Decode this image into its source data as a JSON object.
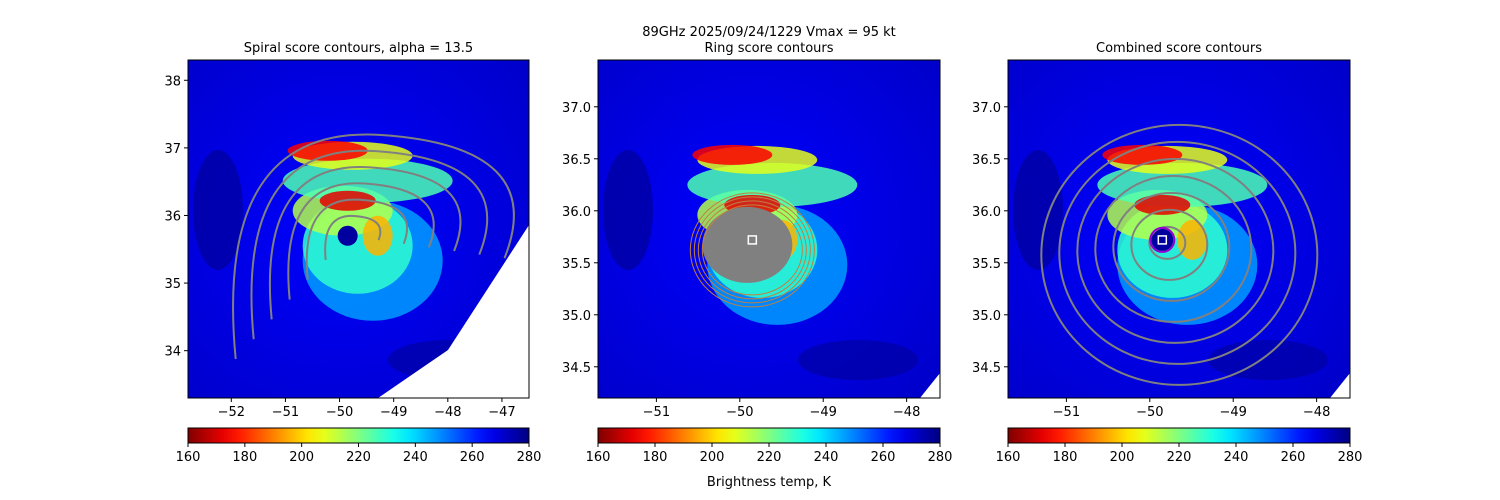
{
  "figure": {
    "suptitle": "89GHz  2025/09/24/1229    Vmax = 95 kt",
    "colorbar_label": "Brightness temp, K"
  },
  "colors": {
    "field_low": "#0000ff",
    "field_high": "#00008b",
    "contour": "#808080",
    "center_marker": "#ffffff",
    "ring_marker": "#9400d3"
  },
  "chart_data": [
    {
      "type": "heatmap",
      "title": "Spiral score contours, alpha = 13.5",
      "xlim": [
        -52.8,
        -46.5
      ],
      "ylim": [
        33.3,
        38.3
      ],
      "xticks": [
        -52,
        -51,
        -50,
        -49,
        -48,
        -47
      ],
      "yticks": [
        34,
        35,
        36,
        37,
        38
      ],
      "center": [
        -49.85,
        35.7
      ],
      "colorbar": {
        "range": [
          160,
          280
        ],
        "ticks": [
          160,
          180,
          200,
          220,
          240,
          260,
          280
        ],
        "colormap": "jet_r"
      }
    },
    {
      "type": "heatmap",
      "title": "Ring score contours",
      "xlim": [
        -51.7,
        -47.6
      ],
      "ylim": [
        34.2,
        37.45
      ],
      "xticks": [
        -51,
        -50,
        -49,
        -48
      ],
      "yticks": [
        34.5,
        35.0,
        35.5,
        36.0,
        36.5,
        37.0
      ],
      "center": [
        -49.85,
        35.72
      ],
      "colorbar": {
        "range": [
          160,
          280
        ],
        "ticks": [
          160,
          180,
          200,
          220,
          240,
          260,
          280
        ],
        "colormap": "jet_r"
      }
    },
    {
      "type": "heatmap",
      "title": "Combined score contours",
      "xlim": [
        -51.7,
        -47.6
      ],
      "ylim": [
        34.2,
        37.45
      ],
      "xticks": [
        -51,
        -50,
        -49,
        -48
      ],
      "yticks": [
        34.5,
        35.0,
        35.5,
        36.0,
        36.5,
        37.0
      ],
      "center": [
        -49.85,
        35.72
      ],
      "colorbar": {
        "range": [
          160,
          280
        ],
        "ticks": [
          160,
          180,
          200,
          220,
          240,
          260,
          280
        ],
        "colormap": "jet_r"
      }
    }
  ]
}
